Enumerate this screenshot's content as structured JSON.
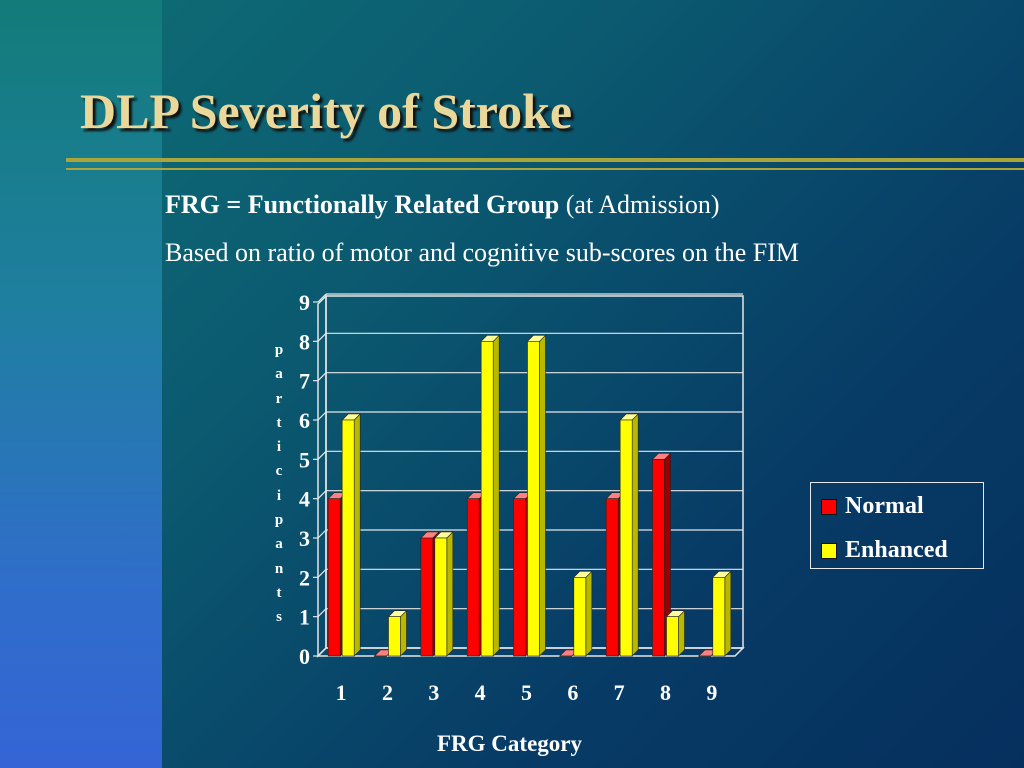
{
  "slide": {
    "title": "DLP  Severity of Stroke",
    "subtitle_bold": "FRG = Functionally Related Group",
    "subtitle_rest": " (at Admission)",
    "subtitle_line2": "Based on ratio of motor and cognitive sub-scores on the FIM"
  },
  "colors": {
    "normal": "#ff0000",
    "enhanced": "#ffff00",
    "title": "#ead79a",
    "rule": "#a9a53a"
  },
  "chart_data": {
    "type": "bar",
    "xlabel": "FRG Category",
    "ylabel": "participants",
    "categories": [
      "1",
      "2",
      "3",
      "4",
      "5",
      "6",
      "7",
      "8",
      "9"
    ],
    "ylim": [
      0,
      9
    ],
    "yticks": [
      0,
      1,
      2,
      3,
      4,
      5,
      6,
      7,
      8,
      9
    ],
    "grid": true,
    "legend_position": "right",
    "series": [
      {
        "name": "Normal",
        "values": [
          4,
          0,
          3,
          4,
          4,
          0,
          4,
          5,
          0
        ]
      },
      {
        "name": "Enhanced",
        "values": [
          6,
          1,
          3,
          8,
          8,
          2,
          6,
          1,
          2
        ]
      }
    ]
  }
}
